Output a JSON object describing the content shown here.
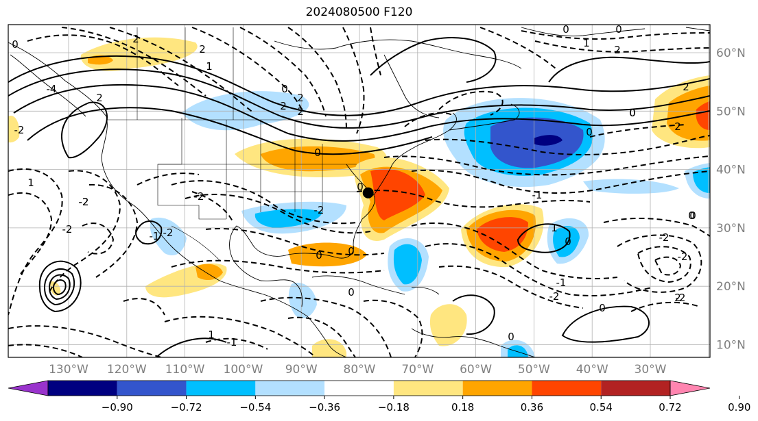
{
  "title": "2024080500 F120",
  "map": {
    "lon_labels": [
      "130°W",
      "120°W",
      "110°W",
      "100°W",
      "90°W",
      "80°W",
      "70°W",
      "60°W",
      "50°W",
      "40°W",
      "30°W"
    ],
    "lat_labels": [
      "60°N",
      "50°N",
      "40°N",
      "30°N",
      "20°N",
      "10°N"
    ],
    "marker": {
      "name": "point-marker",
      "lon": -78.5,
      "lat": 36.0
    }
  },
  "contour_labels": [
    "0",
    "2",
    "2",
    "1",
    "0",
    "2",
    "2",
    "2",
    "-4",
    "-2",
    "1",
    "-2",
    "2",
    "0",
    "-2",
    "0",
    "-2",
    "-2",
    "0",
    "0",
    "-2",
    "-1",
    "0",
    "1",
    "-2",
    "-1",
    "0",
    "0",
    "-2",
    "-2",
    "0",
    "-1",
    "2",
    "0",
    "0",
    "1",
    "0",
    "-2",
    "-2",
    "0",
    "1",
    "2",
    "0",
    "2",
    "0",
    "-1",
    "2",
    "0"
  ],
  "colorbar": {
    "colors": [
      "#9933cc",
      "#000080",
      "#3355cc",
      "#00bfff",
      "#b3e0ff",
      "#ffffff",
      "#ffe680",
      "#ffa500",
      "#ff4500",
      "#b22222",
      "#ff85b0"
    ],
    "ticks": [
      "−0.90",
      "−0.72",
      "−0.54",
      "−0.36",
      "−0.18",
      "0.18",
      "0.36",
      "0.54",
      "0.72",
      "0.90"
    ]
  }
}
